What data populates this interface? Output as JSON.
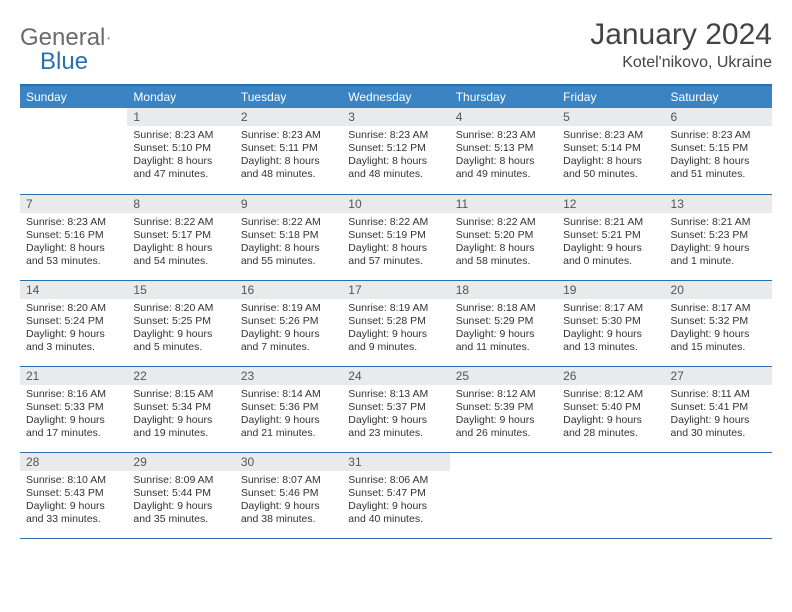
{
  "logo": {
    "text1": "General",
    "text2": "Blue"
  },
  "header": {
    "month": "January 2024",
    "location": "Kotel'nikovo, Ukraine"
  },
  "dayHeaders": [
    "Sunday",
    "Monday",
    "Tuesday",
    "Wednesday",
    "Thursday",
    "Friday",
    "Saturday"
  ],
  "colors": {
    "headerBg": "#3b84c4",
    "headerBorder": "#2a6fb0",
    "dayNumBg": "#e9eaec",
    "text": "#333333",
    "logoGray": "#6b6b6b",
    "logoBlue": "#2a6fb0"
  },
  "weeks": [
    [
      {
        "n": "",
        "sr": "",
        "ss": "",
        "d1": "",
        "d2": "",
        "empty": true
      },
      {
        "n": "1",
        "sr": "Sunrise: 8:23 AM",
        "ss": "Sunset: 5:10 PM",
        "d1": "Daylight: 8 hours",
        "d2": "and 47 minutes."
      },
      {
        "n": "2",
        "sr": "Sunrise: 8:23 AM",
        "ss": "Sunset: 5:11 PM",
        "d1": "Daylight: 8 hours",
        "d2": "and 48 minutes."
      },
      {
        "n": "3",
        "sr": "Sunrise: 8:23 AM",
        "ss": "Sunset: 5:12 PM",
        "d1": "Daylight: 8 hours",
        "d2": "and 48 minutes."
      },
      {
        "n": "4",
        "sr": "Sunrise: 8:23 AM",
        "ss": "Sunset: 5:13 PM",
        "d1": "Daylight: 8 hours",
        "d2": "and 49 minutes."
      },
      {
        "n": "5",
        "sr": "Sunrise: 8:23 AM",
        "ss": "Sunset: 5:14 PM",
        "d1": "Daylight: 8 hours",
        "d2": "and 50 minutes."
      },
      {
        "n": "6",
        "sr": "Sunrise: 8:23 AM",
        "ss": "Sunset: 5:15 PM",
        "d1": "Daylight: 8 hours",
        "d2": "and 51 minutes."
      }
    ],
    [
      {
        "n": "7",
        "sr": "Sunrise: 8:23 AM",
        "ss": "Sunset: 5:16 PM",
        "d1": "Daylight: 8 hours",
        "d2": "and 53 minutes."
      },
      {
        "n": "8",
        "sr": "Sunrise: 8:22 AM",
        "ss": "Sunset: 5:17 PM",
        "d1": "Daylight: 8 hours",
        "d2": "and 54 minutes."
      },
      {
        "n": "9",
        "sr": "Sunrise: 8:22 AM",
        "ss": "Sunset: 5:18 PM",
        "d1": "Daylight: 8 hours",
        "d2": "and 55 minutes."
      },
      {
        "n": "10",
        "sr": "Sunrise: 8:22 AM",
        "ss": "Sunset: 5:19 PM",
        "d1": "Daylight: 8 hours",
        "d2": "and 57 minutes."
      },
      {
        "n": "11",
        "sr": "Sunrise: 8:22 AM",
        "ss": "Sunset: 5:20 PM",
        "d1": "Daylight: 8 hours",
        "d2": "and 58 minutes."
      },
      {
        "n": "12",
        "sr": "Sunrise: 8:21 AM",
        "ss": "Sunset: 5:21 PM",
        "d1": "Daylight: 9 hours",
        "d2": "and 0 minutes."
      },
      {
        "n": "13",
        "sr": "Sunrise: 8:21 AM",
        "ss": "Sunset: 5:23 PM",
        "d1": "Daylight: 9 hours",
        "d2": "and 1 minute."
      }
    ],
    [
      {
        "n": "14",
        "sr": "Sunrise: 8:20 AM",
        "ss": "Sunset: 5:24 PM",
        "d1": "Daylight: 9 hours",
        "d2": "and 3 minutes."
      },
      {
        "n": "15",
        "sr": "Sunrise: 8:20 AM",
        "ss": "Sunset: 5:25 PM",
        "d1": "Daylight: 9 hours",
        "d2": "and 5 minutes."
      },
      {
        "n": "16",
        "sr": "Sunrise: 8:19 AM",
        "ss": "Sunset: 5:26 PM",
        "d1": "Daylight: 9 hours",
        "d2": "and 7 minutes."
      },
      {
        "n": "17",
        "sr": "Sunrise: 8:19 AM",
        "ss": "Sunset: 5:28 PM",
        "d1": "Daylight: 9 hours",
        "d2": "and 9 minutes."
      },
      {
        "n": "18",
        "sr": "Sunrise: 8:18 AM",
        "ss": "Sunset: 5:29 PM",
        "d1": "Daylight: 9 hours",
        "d2": "and 11 minutes."
      },
      {
        "n": "19",
        "sr": "Sunrise: 8:17 AM",
        "ss": "Sunset: 5:30 PM",
        "d1": "Daylight: 9 hours",
        "d2": "and 13 minutes."
      },
      {
        "n": "20",
        "sr": "Sunrise: 8:17 AM",
        "ss": "Sunset: 5:32 PM",
        "d1": "Daylight: 9 hours",
        "d2": "and 15 minutes."
      }
    ],
    [
      {
        "n": "21",
        "sr": "Sunrise: 8:16 AM",
        "ss": "Sunset: 5:33 PM",
        "d1": "Daylight: 9 hours",
        "d2": "and 17 minutes."
      },
      {
        "n": "22",
        "sr": "Sunrise: 8:15 AM",
        "ss": "Sunset: 5:34 PM",
        "d1": "Daylight: 9 hours",
        "d2": "and 19 minutes."
      },
      {
        "n": "23",
        "sr": "Sunrise: 8:14 AM",
        "ss": "Sunset: 5:36 PM",
        "d1": "Daylight: 9 hours",
        "d2": "and 21 minutes."
      },
      {
        "n": "24",
        "sr": "Sunrise: 8:13 AM",
        "ss": "Sunset: 5:37 PM",
        "d1": "Daylight: 9 hours",
        "d2": "and 23 minutes."
      },
      {
        "n": "25",
        "sr": "Sunrise: 8:12 AM",
        "ss": "Sunset: 5:39 PM",
        "d1": "Daylight: 9 hours",
        "d2": "and 26 minutes."
      },
      {
        "n": "26",
        "sr": "Sunrise: 8:12 AM",
        "ss": "Sunset: 5:40 PM",
        "d1": "Daylight: 9 hours",
        "d2": "and 28 minutes."
      },
      {
        "n": "27",
        "sr": "Sunrise: 8:11 AM",
        "ss": "Sunset: 5:41 PM",
        "d1": "Daylight: 9 hours",
        "d2": "and 30 minutes."
      }
    ],
    [
      {
        "n": "28",
        "sr": "Sunrise: 8:10 AM",
        "ss": "Sunset: 5:43 PM",
        "d1": "Daylight: 9 hours",
        "d2": "and 33 minutes."
      },
      {
        "n": "29",
        "sr": "Sunrise: 8:09 AM",
        "ss": "Sunset: 5:44 PM",
        "d1": "Daylight: 9 hours",
        "d2": "and 35 minutes."
      },
      {
        "n": "30",
        "sr": "Sunrise: 8:07 AM",
        "ss": "Sunset: 5:46 PM",
        "d1": "Daylight: 9 hours",
        "d2": "and 38 minutes."
      },
      {
        "n": "31",
        "sr": "Sunrise: 8:06 AM",
        "ss": "Sunset: 5:47 PM",
        "d1": "Daylight: 9 hours",
        "d2": "and 40 minutes."
      },
      {
        "n": "",
        "sr": "",
        "ss": "",
        "d1": "",
        "d2": "",
        "empty": true
      },
      {
        "n": "",
        "sr": "",
        "ss": "",
        "d1": "",
        "d2": "",
        "empty": true
      },
      {
        "n": "",
        "sr": "",
        "ss": "",
        "d1": "",
        "d2": "",
        "empty": true
      }
    ]
  ]
}
